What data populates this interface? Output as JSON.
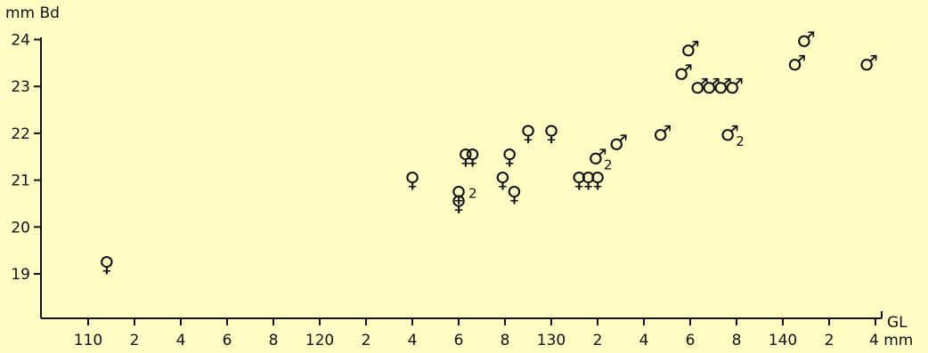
{
  "chart_data": {
    "type": "scatter",
    "xlabel": "GL",
    "xunit": "mm",
    "ylabel": "mm Bd",
    "xlim": [
      108,
      145
    ],
    "ylim": [
      18,
      24
    ],
    "grid": false,
    "x_ticks": [
      110,
      112,
      114,
      116,
      118,
      120,
      122,
      124,
      126,
      128,
      130,
      132,
      134,
      136,
      138,
      140,
      142,
      144
    ],
    "x_tick_labels": [
      "110",
      "2",
      "4",
      "6",
      "8",
      "120",
      "2",
      "4",
      "6",
      "8",
      "130",
      "2",
      "4",
      "6",
      "8",
      "140",
      "2",
      "4 mm"
    ],
    "y_ticks": [
      19,
      20,
      21,
      22,
      23,
      24
    ],
    "y_tick_labels": [
      "19",
      "20",
      "21",
      "22",
      "23",
      "24"
    ],
    "colors": {
      "background": "#fefdc4",
      "ink": "#111111"
    },
    "series": [
      {
        "marker": "female-symbol",
        "points": [
          {
            "x": 110.8,
            "y": 19.2
          },
          {
            "x": 124.0,
            "y": 21.0
          },
          {
            "x": 126.0,
            "y": 20.7,
            "label": "2"
          },
          {
            "x": 126.0,
            "y": 20.5
          },
          {
            "x": 126.3,
            "y": 21.5
          },
          {
            "x": 126.6,
            "y": 21.5
          },
          {
            "x": 127.9,
            "y": 21.0
          },
          {
            "x": 128.2,
            "y": 21.5
          },
          {
            "x": 128.4,
            "y": 20.7
          },
          {
            "x": 129.0,
            "y": 22.0
          },
          {
            "x": 130.0,
            "y": 22.0
          },
          {
            "x": 131.2,
            "y": 21.0
          },
          {
            "x": 131.6,
            "y": 21.0
          },
          {
            "x": 132.0,
            "y": 21.0
          }
        ]
      },
      {
        "marker": "male-symbol",
        "points": [
          {
            "x": 132.0,
            "y": 21.5,
            "label": "2"
          },
          {
            "x": 132.9,
            "y": 21.8
          },
          {
            "x": 134.8,
            "y": 22.0
          },
          {
            "x": 135.7,
            "y": 23.3
          },
          {
            "x": 136.0,
            "y": 23.8
          },
          {
            "x": 136.4,
            "y": 23.0
          },
          {
            "x": 136.9,
            "y": 23.0
          },
          {
            "x": 137.4,
            "y": 23.0
          },
          {
            "x": 137.9,
            "y": 23.0
          },
          {
            "x": 137.7,
            "y": 22.0,
            "label": "2"
          },
          {
            "x": 140.6,
            "y": 23.5
          },
          {
            "x": 141.0,
            "y": 24.0
          },
          {
            "x": 143.7,
            "y": 23.5
          }
        ]
      }
    ]
  }
}
